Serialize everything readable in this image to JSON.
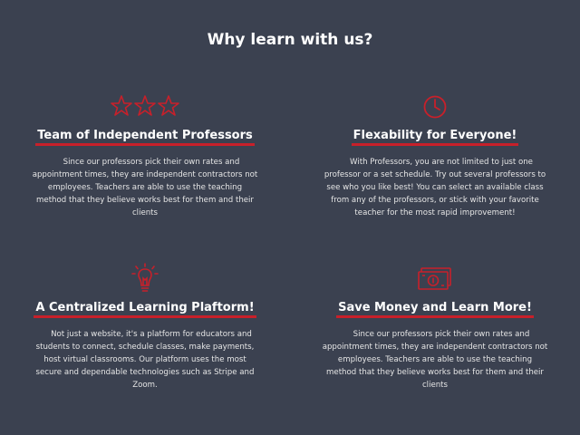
{
  "section": {
    "title": "Why learn with us?"
  },
  "colors": {
    "background": "#3b4150",
    "accent": "#c8202a",
    "text": "#ffffff"
  },
  "features": [
    {
      "icon": "stars-icon",
      "title": "Team of Independent Professors",
      "description": "Since our professors pick their own rates and appointment times, they are independent contractors not employees. Teachers are able to use the teaching method that they believe works best for them and their clients"
    },
    {
      "icon": "clock-icon",
      "title": "Flexability for Everyone!",
      "description": "With Professors, you are not limited to just one professor or a set schedule. Try out several professors to see who you like best! You can select an available class from any of the professors, or stick with your favorite teacher for the most rapid improvement!"
    },
    {
      "icon": "lightbulb-icon",
      "title": "A Centralized Learning Plaftorm!",
      "description": "Not just a website, it's a platform for educators and students to connect, schedule classes, make payments, host virtual classrooms. Our platform uses the most secure and dependable technologies such as Stripe and Zoom."
    },
    {
      "icon": "money-icon",
      "title": "Save Money and Learn More!",
      "description": "Since our professors pick their own rates and appointment times, they are independent contractors not employees. Teachers are able to use the teaching method that they believe works best for them and their clients"
    }
  ]
}
